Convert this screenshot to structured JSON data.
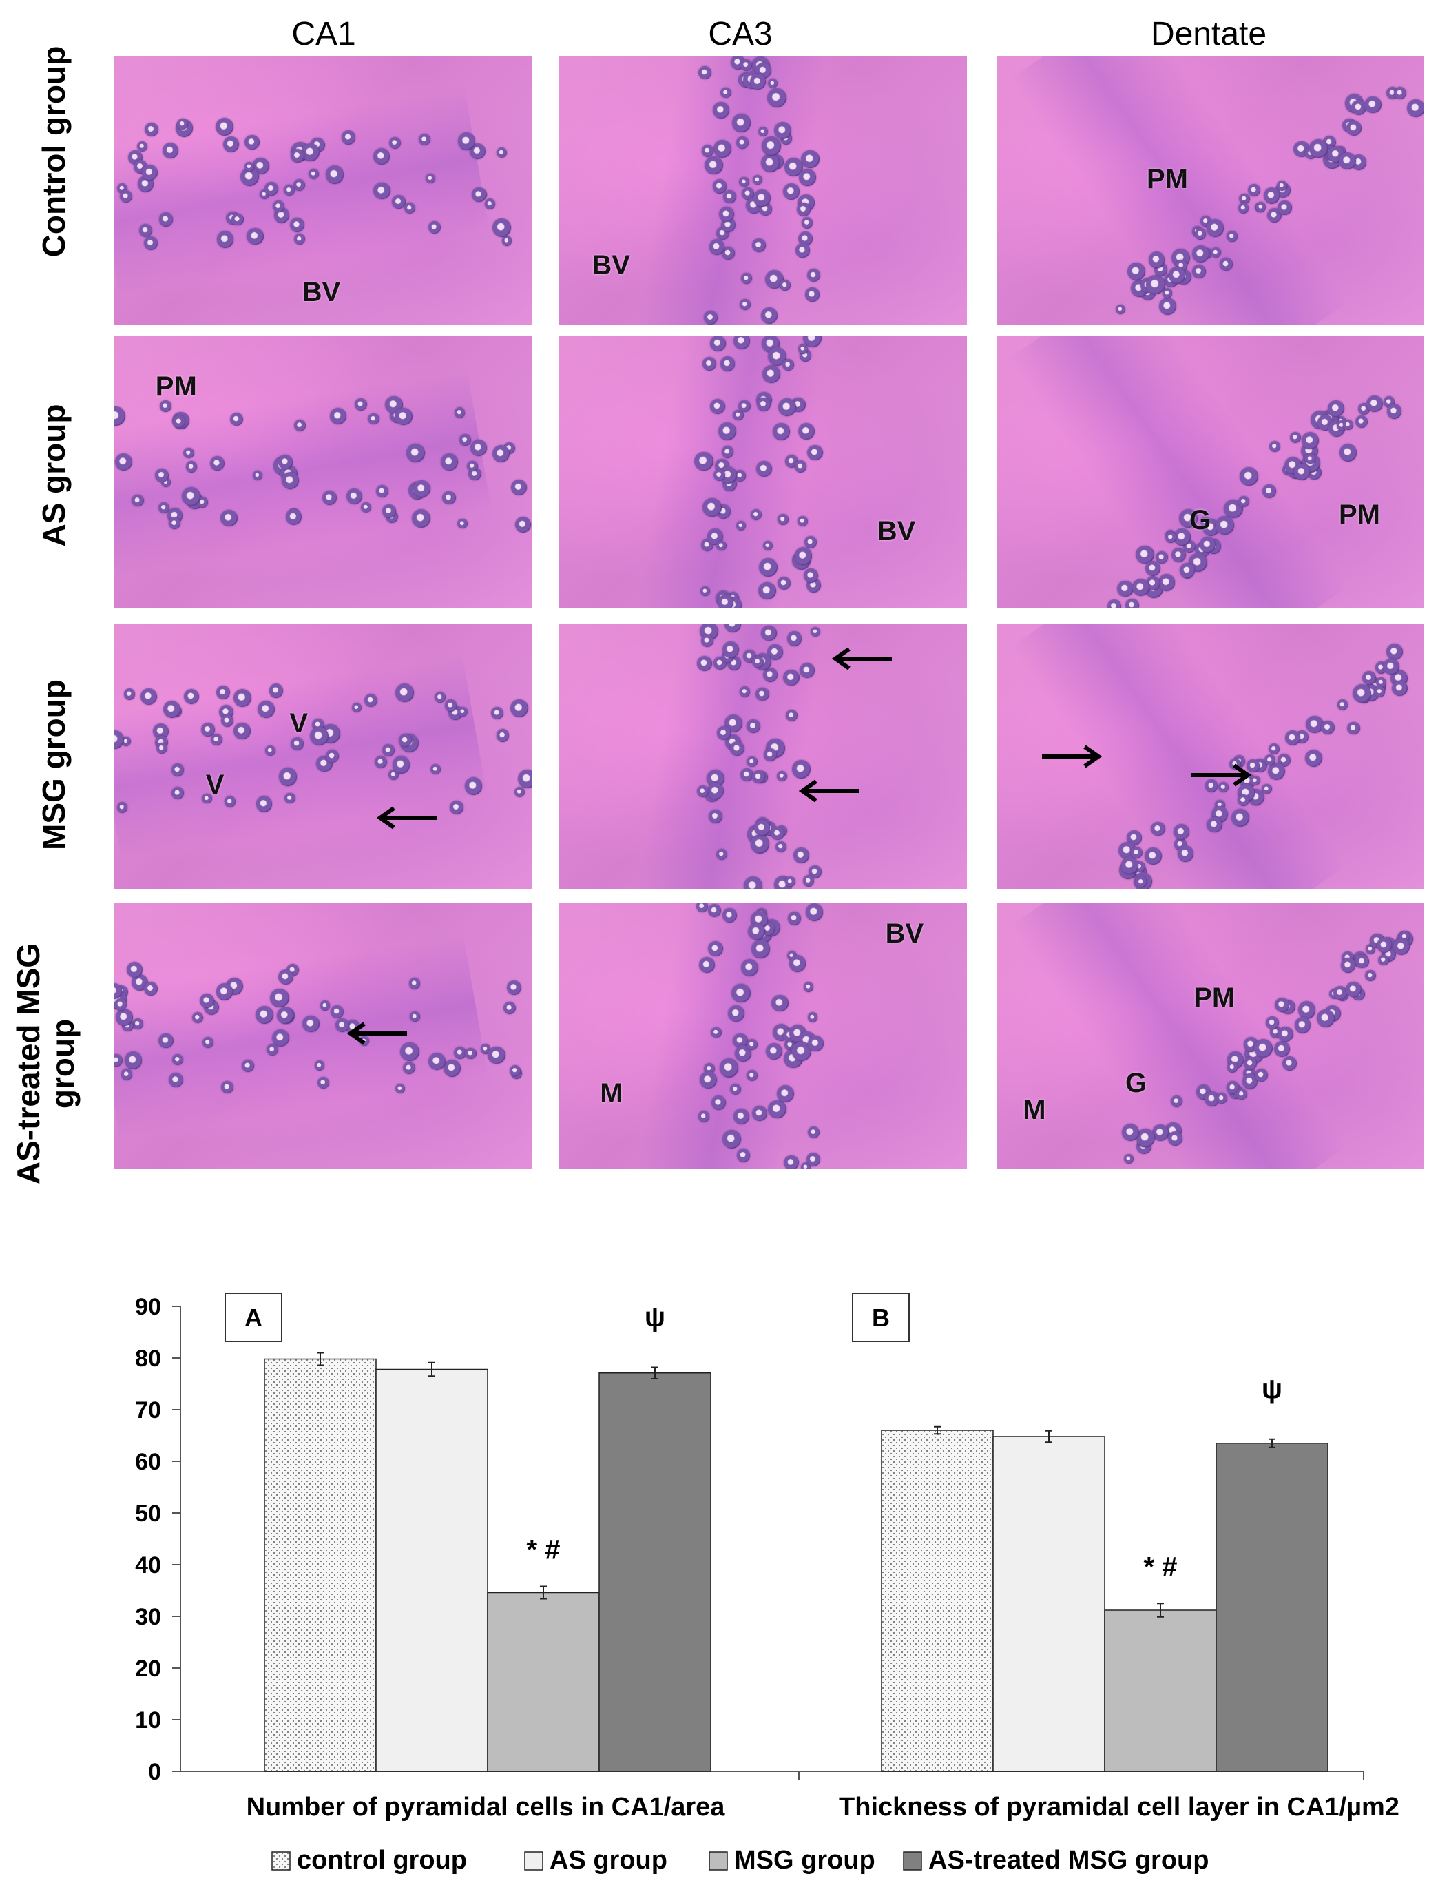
{
  "columns": [
    "CA1",
    "CA3",
    "Dentate"
  ],
  "rows": [
    "Control group",
    "AS group",
    "MSG group",
    "AS-treated MSG group"
  ],
  "panels": [
    [
      {
        "labels": [
          "BV"
        ],
        "arrows": 0
      },
      {
        "labels": [
          "BV"
        ],
        "arrows": 0
      },
      {
        "labels": [
          "PM"
        ],
        "arrows": 0
      }
    ],
    [
      {
        "labels": [
          "PM"
        ],
        "arrows": 0
      },
      {
        "labels": [
          "BV"
        ],
        "arrows": 0
      },
      {
        "labels": [
          "G",
          "PM"
        ],
        "arrows": 0
      }
    ],
    [
      {
        "labels": [
          "V",
          "V"
        ],
        "arrows": 1
      },
      {
        "labels": [],
        "arrows": 2
      },
      {
        "labels": [],
        "arrows": 2
      }
    ],
    [
      {
        "labels": [],
        "arrows": 1
      },
      {
        "labels": [
          "BV",
          "M"
        ],
        "arrows": 0
      },
      {
        "labels": [
          "PM",
          "G",
          "M"
        ],
        "arrows": 0
      }
    ]
  ],
  "chart_data": {
    "type": "bar",
    "categories": [
      "Number of pyramidal cells in CA1/area",
      "Thickness of pyramidal cell layer in CA1/µm2"
    ],
    "panel_labels": [
      "A",
      "B"
    ],
    "ylim": [
      0,
      90
    ],
    "yticks": [
      0,
      10,
      20,
      30,
      40,
      50,
      60,
      70,
      80,
      90
    ],
    "series": [
      {
        "name": "control group",
        "values": [
          79.8,
          66.0
        ],
        "errors": [
          1.2,
          0.7
        ],
        "color": "#f4f4f4",
        "pattern": "dotted"
      },
      {
        "name": "AS group",
        "values": [
          77.8,
          64.8
        ],
        "errors": [
          1.3,
          1.1
        ],
        "color": "#f0f0f0",
        "pattern": "none"
      },
      {
        "name": "MSG group",
        "values": [
          34.6,
          31.2
        ],
        "errors": [
          1.2,
          1.3
        ],
        "color": "#bdbdbd",
        "pattern": "none"
      },
      {
        "name": "AS-treated MSG group",
        "values": [
          77.1,
          63.5
        ],
        "errors": [
          1.1,
          0.8
        ],
        "color": "#808080",
        "pattern": "none"
      }
    ],
    "annotations": [
      {
        "text": "* #",
        "category": 0,
        "series": 2
      },
      {
        "text": "ψ",
        "category": 0,
        "series": 3
      },
      {
        "text": "* #",
        "category": 1,
        "series": 2
      },
      {
        "text": "ψ",
        "category": 1,
        "series": 3
      }
    ],
    "legend_position": "bottom"
  }
}
